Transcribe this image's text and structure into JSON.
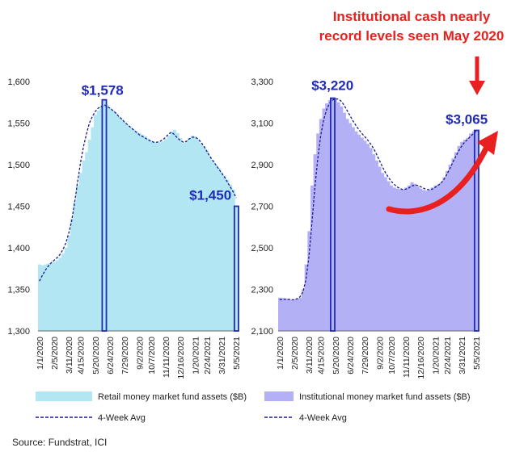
{
  "headline": [
    "Institutional cash nearly",
    "record levels seen May 2020"
  ],
  "source": "Source: Fundstrat, ICI",
  "colors": {
    "retail_fill": "#b3e6f3",
    "inst_fill": "#b3b0f5",
    "avg_line": "#1a1a8c",
    "callout": "#1f2bb5",
    "headline": "#e8201f",
    "highlight_bar": "#1f2bb5"
  },
  "chart_data": [
    {
      "type": "bar",
      "x_tick_labels": [
        "1/1/2020",
        "2/5/2020",
        "3/11/2020",
        "4/15/2020",
        "5/20/2020",
        "6/24/2020",
        "7/29/2020",
        "9/2/2020",
        "10/7/2020",
        "11/11/2020",
        "12/16/2020",
        "1/20/2021",
        "2/24/2021",
        "3/31/2021",
        "5/5/2021"
      ],
      "y_ticks": [
        1300,
        1350,
        1400,
        1450,
        1500,
        1550,
        1600
      ],
      "y_tick_labels": [
        "1,300",
        "1,350",
        "1,400",
        "1,450",
        "1,500",
        "1,550",
        "1,600"
      ],
      "ylim": [
        1300,
        1600
      ],
      "series": [
        {
          "name": "Retail money market fund assets ($B)",
          "type": "bar",
          "values": [
            1380,
            1379,
            1380,
            1381,
            1382,
            1383,
            1385,
            1388,
            1393,
            1400,
            1415,
            1435,
            1455,
            1475,
            1490,
            1505,
            1515,
            1530,
            1545,
            1560,
            1565,
            1570,
            1578,
            1572,
            1568,
            1565,
            1562,
            1558,
            1555,
            1551,
            1548,
            1545,
            1542,
            1540,
            1538,
            1536,
            1534,
            1531,
            1529,
            1527,
            1526,
            1527,
            1528,
            1531,
            1535,
            1540,
            1542,
            1538,
            1532,
            1526,
            1528,
            1532,
            1535,
            1534,
            1530,
            1526,
            1522,
            1517,
            1510,
            1505,
            1500,
            1496,
            1491,
            1487,
            1482,
            1476,
            1470,
            1450
          ]
        },
        {
          "name": "4-Week Avg",
          "type": "line",
          "values": [
            1360,
            1367,
            1373,
            1378,
            1382,
            1385,
            1388,
            1392,
            1398,
            1406,
            1418,
            1433,
            1455,
            1480,
            1503,
            1522,
            1537,
            1550,
            1558,
            1564,
            1568,
            1570,
            1572,
            1570,
            1568,
            1565,
            1562,
            1558,
            1555,
            1551,
            1548,
            1545,
            1542,
            1539,
            1536,
            1534,
            1532,
            1530,
            1528,
            1527,
            1527,
            1528,
            1530,
            1533,
            1537,
            1539,
            1536,
            1532,
            1529,
            1527,
            1528,
            1531,
            1533,
            1533,
            1531,
            1527,
            1522,
            1516,
            1510,
            1505,
            1500,
            1495,
            1490,
            1485,
            1479,
            1473,
            1467,
            1460
          ]
        }
      ],
      "annotations": [
        {
          "label": "$1,578",
          "index": 22
        },
        {
          "label": "$1,450",
          "index": 67
        }
      ]
    },
    {
      "type": "bar",
      "x_tick_labels": [
        "1/1/2020",
        "2/5/2020",
        "3/11/2020",
        "4/15/2020",
        "5/20/2020",
        "6/24/2020",
        "7/29/2020",
        "9/2/2020",
        "10/7/2020",
        "11/11/2020",
        "12/16/2020",
        "1/20/2021",
        "2/24/2021",
        "3/31/2021",
        "5/5/2021"
      ],
      "y_ticks": [
        2100,
        2300,
        2500,
        2700,
        2900,
        3100,
        3300
      ],
      "y_tick_labels": [
        "2,100",
        "2,300",
        "2,500",
        "2,700",
        "2,900",
        "3,100",
        "3,300"
      ],
      "ylim": [
        2100,
        3300
      ],
      "series": [
        {
          "name": "Institutional money market fund assets ($B)",
          "type": "bar",
          "values": [
            2260,
            2258,
            2256,
            2255,
            2250,
            2252,
            2255,
            2260,
            2300,
            2420,
            2580,
            2800,
            2950,
            3050,
            3120,
            3170,
            3195,
            3210,
            3220,
            3215,
            3200,
            3180,
            3150,
            3120,
            3100,
            3080,
            3060,
            3045,
            3030,
            3015,
            3000,
            2980,
            2950,
            2920,
            2890,
            2860,
            2840,
            2820,
            2800,
            2790,
            2785,
            2782,
            2780,
            2790,
            2800,
            2815,
            2808,
            2795,
            2785,
            2778,
            2775,
            2780,
            2790,
            2800,
            2805,
            2815,
            2840,
            2870,
            2900,
            2930,
            2960,
            2990,
            3010,
            3020,
            3030,
            3050,
            3060,
            3065
          ]
        },
        {
          "name": "4-Week Avg",
          "type": "line",
          "values": [
            2250,
            2252,
            2253,
            2252,
            2250,
            2250,
            2255,
            2265,
            2290,
            2350,
            2460,
            2620,
            2790,
            2930,
            3040,
            3115,
            3165,
            3195,
            3210,
            3218,
            3215,
            3205,
            3185,
            3160,
            3135,
            3110,
            3088,
            3068,
            3050,
            3035,
            3018,
            3000,
            2978,
            2950,
            2920,
            2890,
            2862,
            2840,
            2820,
            2805,
            2793,
            2785,
            2780,
            2782,
            2788,
            2797,
            2802,
            2800,
            2794,
            2787,
            2781,
            2779,
            2783,
            2791,
            2801,
            2812,
            2830,
            2855,
            2882,
            2912,
            2940,
            2967,
            2990,
            3008,
            3022,
            3036,
            3050,
            3062
          ]
        }
      ],
      "annotations": [
        {
          "label": "$3,220",
          "index": 18
        },
        {
          "label": "$3,065",
          "index": 67
        }
      ]
    }
  ]
}
